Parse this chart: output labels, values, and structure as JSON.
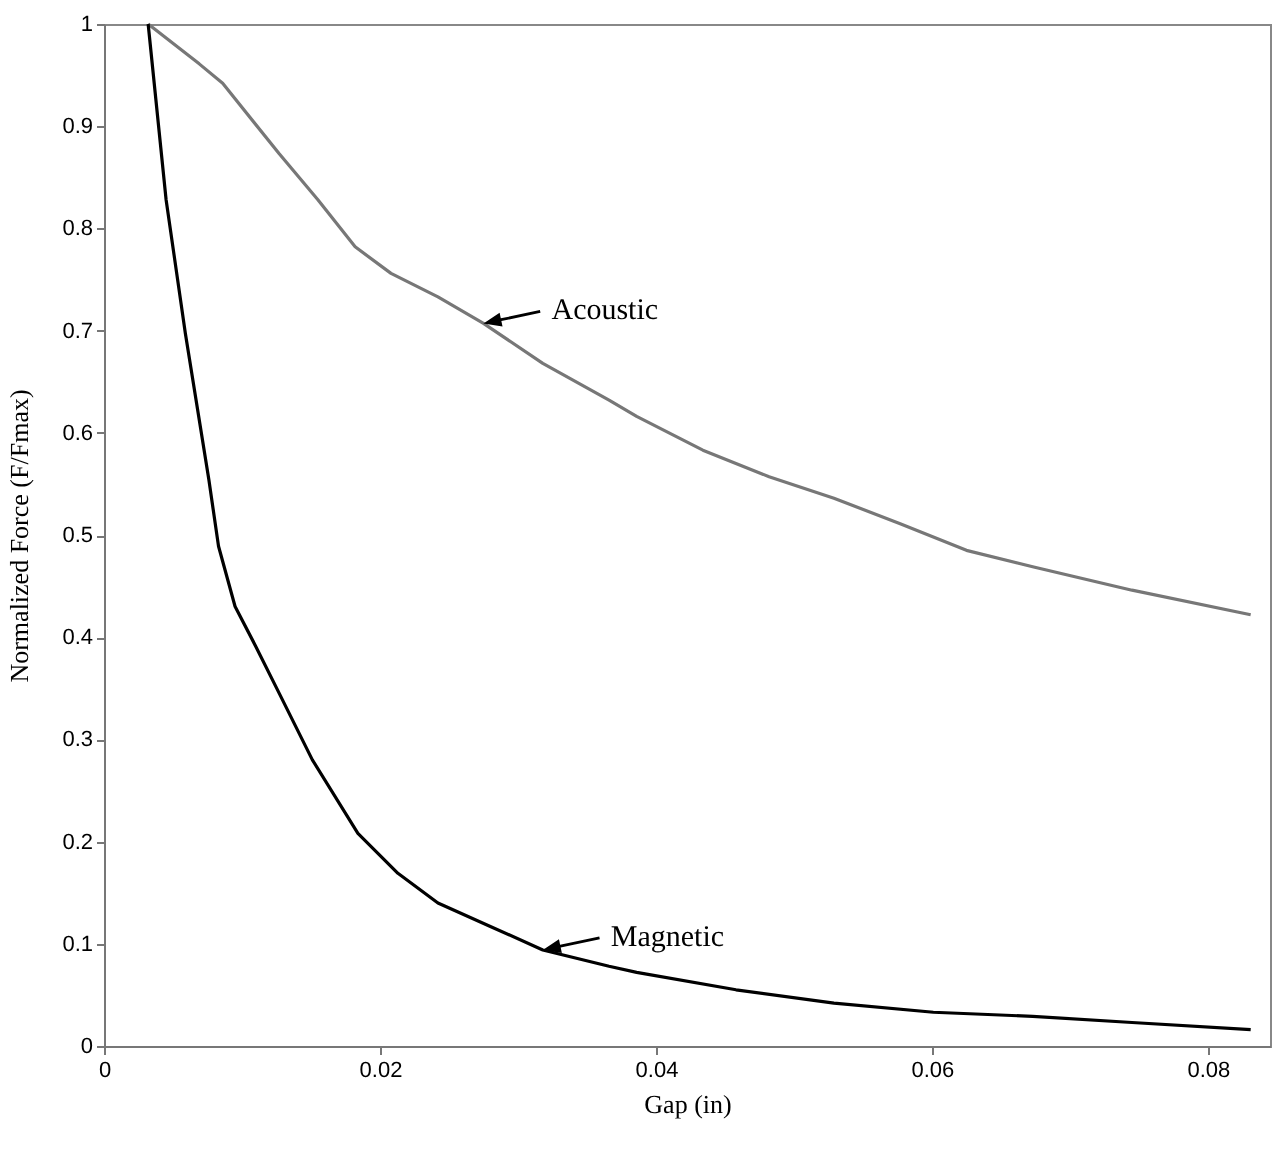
{
  "chart_data": {
    "type": "line",
    "xlabel": "Gap (in)",
    "ylabel": "Normalized Force (F/Fmax)",
    "xlim": [
      0,
      0.0845
    ],
    "xticks": [
      0,
      0.02,
      0.04,
      0.06,
      0.08
    ],
    "ylim": [
      0,
      1
    ],
    "yticks": [
      0,
      0.1,
      0.2,
      0.3,
      0.4,
      0.5,
      0.6,
      0.7,
      0.8,
      0.9,
      1
    ],
    "grid": false,
    "line_style": "solid",
    "marker": "none",
    "series": [
      {
        "color": "#777777",
        "x": [
          0.0032,
          0.0069,
          0.0086,
          0.0127,
          0.0155,
          0.0182,
          0.0208,
          0.0242,
          0.0275,
          0.0318,
          0.0366,
          0.0386,
          0.0434,
          0.0482,
          0.0529,
          0.0577,
          0.0625,
          0.0673,
          0.0745,
          0.0831
        ],
        "values": [
          1,
          0.961,
          0.942,
          0.873,
          0.828,
          0.782,
          0.756,
          0.733,
          0.707,
          0.668,
          0.632,
          0.616,
          0.583,
          0.557,
          0.536,
          0.511,
          0.485,
          0.469,
          0.446,
          0.422
        ]
      },
      {
        "color": "#000000",
        "x": [
          0.0032,
          0.0045,
          0.0059,
          0.0076,
          0.0083,
          0.0095,
          0.011,
          0.0127,
          0.0151,
          0.0184,
          0.0213,
          0.0242,
          0.028,
          0.0318,
          0.0366,
          0.0386,
          0.0458,
          0.0529,
          0.0601,
          0.0673,
          0.0745,
          0.0831
        ],
        "values": [
          1,
          0.828,
          0.697,
          0.554,
          0.489,
          0.43,
          0.391,
          0.345,
          0.28,
          0.208,
          0.169,
          0.14,
          0.117,
          0.094,
          0.078,
          0.072,
          0.055,
          0.042,
          0.033,
          0.029,
          0.023,
          0.016
        ]
      }
    ],
    "annotations": [
      {
        "text": "Acoustic",
        "x": 0.0275,
        "y": 0.707
      },
      {
        "text": "Magnetic",
        "x": 0.0318,
        "y": 0.094
      }
    ]
  }
}
